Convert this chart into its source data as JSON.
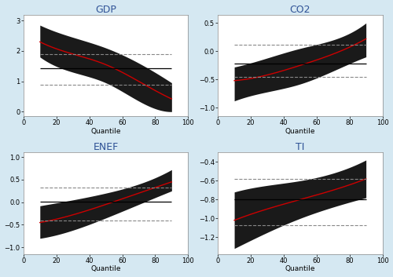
{
  "panels": [
    {
      "title": "GDP",
      "ylim": [
        -0.15,
        3.2
      ],
      "yticks": [
        0,
        1,
        2,
        3
      ],
      "red_x": [
        10,
        30,
        50,
        70,
        90
      ],
      "red_y": [
        2.3,
        1.9,
        1.55,
        1.0,
        0.42
      ],
      "band_upper_x": [
        10,
        30,
        50,
        70,
        90
      ],
      "band_upper_y": [
        2.85,
        2.45,
        2.1,
        1.6,
        0.95
      ],
      "band_lower_x": [
        10,
        30,
        50,
        70,
        90
      ],
      "band_lower_y": [
        1.8,
        1.3,
        0.95,
        0.35,
        0.0
      ],
      "hline": 1.43,
      "dash_upper": 1.9,
      "dash_lower": 0.88
    },
    {
      "title": "CO2",
      "ylim": [
        -1.15,
        0.65
      ],
      "yticks": [
        -1,
        -0.5,
        0,
        0.5
      ],
      "red_x": [
        10,
        30,
        50,
        70,
        90
      ],
      "red_y": [
        -0.52,
        -0.42,
        -0.25,
        -0.05,
        0.22
      ],
      "band_upper_x": [
        10,
        30,
        50,
        70,
        90
      ],
      "band_upper_y": [
        -0.28,
        -0.12,
        0.05,
        0.2,
        0.5
      ],
      "band_lower_x": [
        10,
        30,
        50,
        70,
        90
      ],
      "band_lower_y": [
        -0.88,
        -0.72,
        -0.58,
        -0.35,
        -0.1
      ],
      "hline": -0.22,
      "dash_upper": 0.12,
      "dash_lower": -0.45
    },
    {
      "title": "ENEF",
      "ylim": [
        -1.15,
        1.1
      ],
      "yticks": [
        -1,
        -0.5,
        0,
        0.5,
        1
      ],
      "red_x": [
        10,
        30,
        50,
        70,
        90
      ],
      "red_y": [
        -0.45,
        -0.28,
        -0.05,
        0.2,
        0.45
      ],
      "band_upper_x": [
        10,
        30,
        50,
        70,
        90
      ],
      "band_upper_y": [
        -0.08,
        0.05,
        0.2,
        0.4,
        0.72
      ],
      "band_lower_x": [
        10,
        30,
        50,
        70,
        90
      ],
      "band_lower_y": [
        -0.8,
        -0.62,
        -0.35,
        -0.05,
        0.25
      ],
      "hline": 0.02,
      "dash_upper": 0.32,
      "dash_lower": -0.4
    },
    {
      "title": "TI",
      "ylim": [
        -1.38,
        -0.3
      ],
      "yticks": [
        -1.2,
        -1.0,
        -0.8,
        -0.6,
        -0.4
      ],
      "red_x": [
        10,
        30,
        50,
        70,
        90
      ],
      "red_y": [
        -1.02,
        -0.9,
        -0.8,
        -0.7,
        -0.58
      ],
      "band_upper_x": [
        10,
        30,
        50,
        70,
        90
      ],
      "band_upper_y": [
        -0.72,
        -0.65,
        -0.6,
        -0.52,
        -0.38
      ],
      "band_lower_x": [
        10,
        30,
        50,
        70,
        90
      ],
      "band_lower_y": [
        -1.32,
        -1.15,
        -1.0,
        -0.88,
        -0.78
      ],
      "hline": -0.8,
      "dash_upper": -0.58,
      "dash_lower": -1.07
    }
  ],
  "bg_color": "#d5e8f2",
  "panel_bg": "#ffffff",
  "band_color": "#1a1a1a",
  "red_color": "#cc0000",
  "hline_color": "#000000",
  "dash_color": "#888888",
  "xlim": [
    0,
    100
  ],
  "xticks": [
    0,
    20,
    40,
    60,
    80,
    100
  ],
  "xlabel": "Quantile",
  "title_color": "#2f5296"
}
